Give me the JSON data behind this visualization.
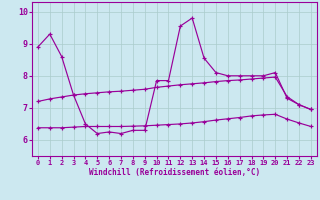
{
  "xlabel": "Windchill (Refroidissement éolien,°C)",
  "bg_color": "#cce8f0",
  "line_color": "#990099",
  "grid_color": "#aacccc",
  "xlim": [
    -0.5,
    23.5
  ],
  "ylim": [
    5.5,
    10.3
  ],
  "yticks": [
    6,
    7,
    8,
    9,
    10
  ],
  "xticks": [
    0,
    1,
    2,
    3,
    4,
    5,
    6,
    7,
    8,
    9,
    10,
    11,
    12,
    13,
    14,
    15,
    16,
    17,
    18,
    19,
    20,
    21,
    22,
    23
  ],
  "line1_x": [
    0,
    1,
    2,
    3,
    4,
    5,
    6,
    7,
    8,
    9,
    10,
    11,
    12,
    13,
    14,
    15,
    16,
    17,
    18,
    19,
    20,
    21,
    22,
    23
  ],
  "line1_y": [
    8.9,
    9.3,
    8.6,
    7.4,
    6.5,
    6.2,
    6.25,
    6.2,
    6.3,
    6.3,
    7.85,
    7.85,
    9.55,
    9.8,
    8.55,
    8.1,
    8.0,
    8.0,
    8.0,
    8.0,
    8.1,
    7.3,
    7.1,
    6.95
  ],
  "line2_x": [
    0,
    1,
    2,
    3,
    4,
    5,
    6,
    7,
    8,
    9,
    10,
    11,
    12,
    13,
    14,
    15,
    16,
    17,
    18,
    19,
    20,
    21,
    22,
    23
  ],
  "line2_y": [
    7.2,
    7.28,
    7.34,
    7.4,
    7.44,
    7.47,
    7.5,
    7.52,
    7.55,
    7.58,
    7.64,
    7.68,
    7.72,
    7.75,
    7.78,
    7.82,
    7.85,
    7.87,
    7.9,
    7.93,
    7.96,
    7.35,
    7.1,
    6.95
  ],
  "line3_x": [
    0,
    1,
    2,
    3,
    4,
    5,
    6,
    7,
    8,
    9,
    10,
    11,
    12,
    13,
    14,
    15,
    16,
    17,
    18,
    19,
    20,
    21,
    22,
    23
  ],
  "line3_y": [
    6.38,
    6.38,
    6.38,
    6.4,
    6.42,
    6.42,
    6.42,
    6.42,
    6.43,
    6.44,
    6.46,
    6.48,
    6.5,
    6.53,
    6.57,
    6.62,
    6.66,
    6.7,
    6.75,
    6.78,
    6.8,
    6.65,
    6.53,
    6.42
  ]
}
